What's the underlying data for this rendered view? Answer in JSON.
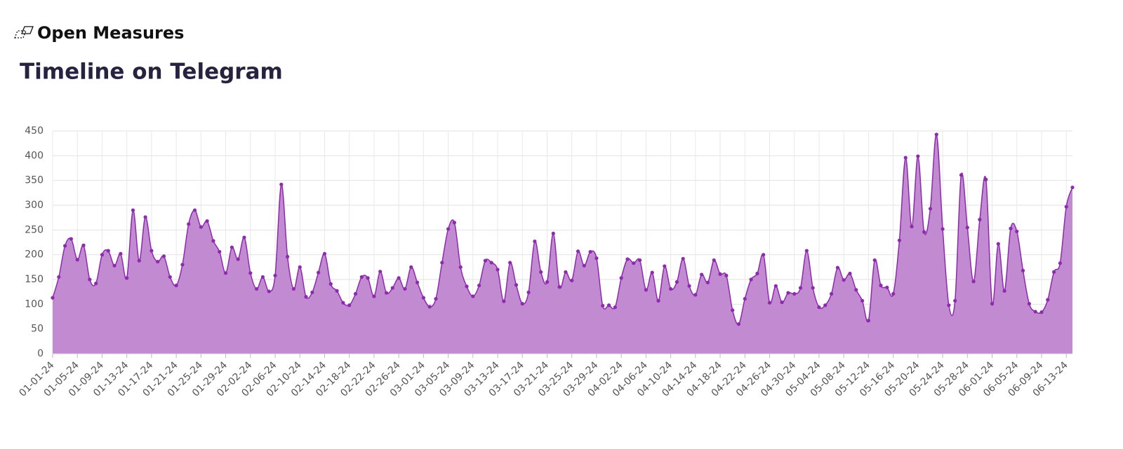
{
  "header": {
    "brand": "Open Measures"
  },
  "chart_data": {
    "type": "area",
    "title": "Timeline on Telegram",
    "categories": [
      "01-01-24",
      null,
      null,
      null,
      "01-05-24",
      null,
      null,
      null,
      "01-09-24",
      null,
      null,
      null,
      "01-13-24",
      null,
      null,
      null,
      "01-17-24",
      null,
      null,
      null,
      "01-21-24",
      null,
      null,
      null,
      "01-25-24",
      null,
      null,
      null,
      "01-29-24",
      null,
      null,
      null,
      "02-02-24",
      null,
      null,
      null,
      "02-06-24",
      null,
      null,
      null,
      "02-10-24",
      null,
      null,
      null,
      "02-14-24",
      null,
      null,
      null,
      "02-18-24",
      null,
      null,
      null,
      "02-22-24",
      null,
      null,
      null,
      "02-26-24",
      null,
      null,
      null,
      "03-01-24",
      null,
      null,
      null,
      "03-05-24",
      null,
      null,
      null,
      "03-09-24",
      null,
      null,
      null,
      "03-13-24",
      null,
      null,
      null,
      "03-17-24",
      null,
      null,
      null,
      "03-21-24",
      null,
      null,
      null,
      "03-25-24",
      null,
      null,
      null,
      "03-29-24",
      null,
      null,
      null,
      "04-02-24",
      null,
      null,
      null,
      "04-06-24",
      null,
      null,
      null,
      "04-10-24",
      null,
      null,
      null,
      "04-14-24",
      null,
      null,
      null,
      "04-18-24",
      null,
      null,
      null,
      "04-22-24",
      null,
      null,
      null,
      "04-26-24",
      null,
      null,
      null,
      "04-30-24",
      null,
      null,
      null,
      "05-04-24",
      null,
      null,
      null,
      "05-08-24",
      null,
      null,
      null,
      "05-12-24",
      null,
      null,
      null,
      "05-16-24",
      null,
      null,
      null,
      "05-20-24",
      null,
      null,
      null,
      "05-24-24",
      null,
      null,
      null,
      "05-28-24",
      null,
      null,
      null,
      "06-01-24",
      null,
      null,
      null,
      "06-05-24",
      null,
      null,
      null,
      "06-09-24",
      null,
      null,
      null,
      "06-13-24",
      null
    ],
    "values": [
      113,
      155,
      218,
      232,
      190,
      219,
      150,
      142,
      200,
      208,
      178,
      202,
      153,
      290,
      188,
      276,
      208,
      186,
      197,
      155,
      138,
      180,
      262,
      290,
      256,
      268,
      228,
      206,
      163,
      215,
      191,
      235,
      163,
      131,
      155,
      126,
      158,
      342,
      196,
      131,
      175,
      115,
      124,
      164,
      202,
      141,
      127,
      103,
      98,
      121,
      155,
      153,
      116,
      166,
      123,
      133,
      153,
      131,
      175,
      144,
      113,
      95,
      111,
      184,
      252,
      265,
      175,
      136,
      116,
      138,
      188,
      184,
      170,
      106,
      184,
      139,
      101,
      124,
      227,
      165,
      145,
      243,
      135,
      165,
      148,
      207,
      178,
      206,
      193,
      97,
      98,
      94,
      153,
      191,
      183,
      189,
      129,
      164,
      107,
      177,
      131,
      145,
      192,
      137,
      119,
      160,
      144,
      189,
      161,
      158,
      88,
      60,
      111,
      150,
      162,
      200,
      103,
      137,
      104,
      123,
      121,
      133,
      208,
      133,
      94,
      98,
      121,
      174,
      149,
      162,
      129,
      107,
      67,
      189,
      138,
      134,
      121,
      229,
      396,
      257,
      399,
      246,
      293,
      443,
      252,
      98,
      107,
      361,
      255,
      146,
      271,
      352,
      101,
      222,
      127,
      253,
      247,
      168,
      101,
      85,
      84,
      109,
      165,
      183,
      297,
      336
    ],
    "color": "#c28ad0",
    "line_color": "#8e2aae",
    "ylim": [
      0,
      450
    ],
    "yticks": [
      0,
      50,
      100,
      150,
      200,
      250,
      300,
      350,
      400,
      450
    ],
    "grid": true
  }
}
